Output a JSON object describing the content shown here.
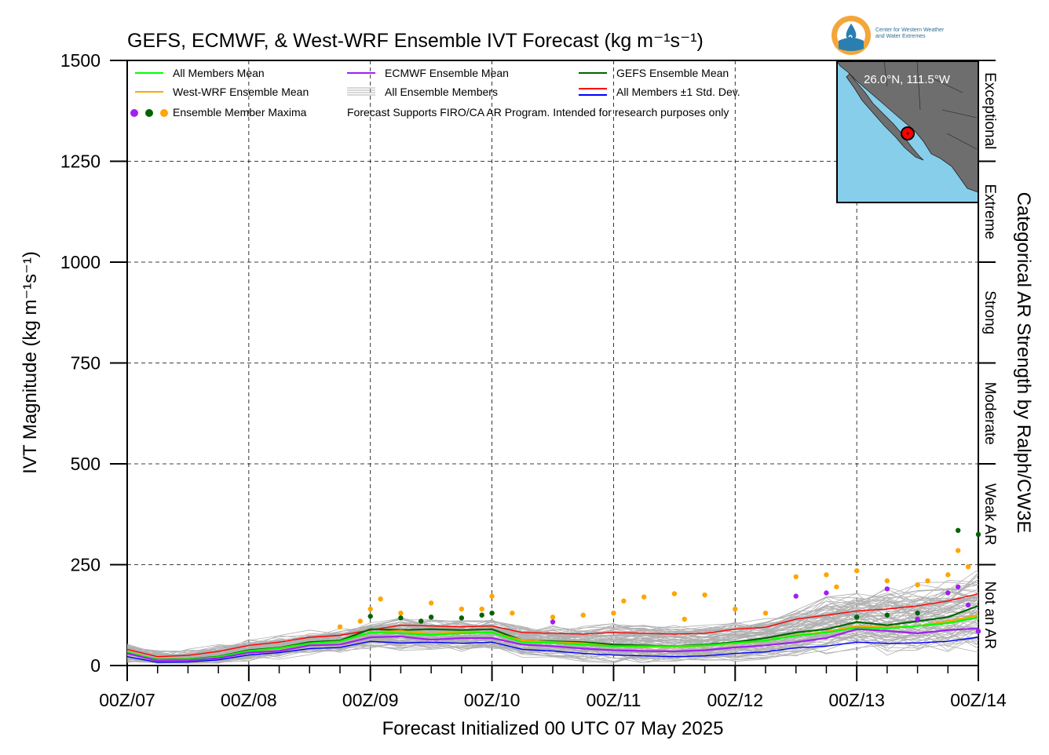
{
  "title": "GEFS, ECMWF, & West-WRF Ensemble IVT Forecast (kg m⁻¹s⁻¹)",
  "chart_data": {
    "type": "line",
    "title": "GEFS, ECMWF, & West-WRF Ensemble IVT Forecast (kg m⁻¹s⁻¹)",
    "xlabel": "Forecast Initialized 00 UTC 07 May 2025",
    "ylabel": "IVT Magnitude (kg m⁻¹s⁻¹)",
    "right_label": "Categorical AR Strength by Ralph/CW3E",
    "xlim": [
      0,
      168
    ],
    "ylim": [
      0,
      1500
    ],
    "x_ticks": [
      0,
      24,
      48,
      72,
      96,
      120,
      144,
      168
    ],
    "x_tick_labels": [
      "00Z/07",
      "00Z/08",
      "00Z/09",
      "00Z/10",
      "00Z/11",
      "00Z/12",
      "00Z/13",
      "00Z/14"
    ],
    "y_ticks": [
      0,
      250,
      500,
      750,
      1000,
      1250,
      1500
    ],
    "y_tick_labels": [
      "0",
      "250",
      "500",
      "750",
      "1000",
      "1250",
      "1500"
    ],
    "grid": true,
    "categories_right": [
      {
        "label": "Not an AR",
        "from": 0,
        "to": 250
      },
      {
        "label": "Weak AR",
        "from": 250,
        "to": 500
      },
      {
        "label": "Moderate",
        "from": 500,
        "to": 750
      },
      {
        "label": "Strong",
        "from": 750,
        "to": 1000
      },
      {
        "label": "Extreme",
        "from": 1000,
        "to": 1250
      },
      {
        "label": "Exceptional",
        "from": 1250,
        "to": 1500
      }
    ],
    "legend": {
      "placement": "top-left",
      "items": [
        {
          "label": "All Members Mean",
          "color": "#00ff00",
          "kind": "line"
        },
        {
          "label": "ECMWF Ensemble Mean",
          "color": "#a020f0",
          "kind": "line"
        },
        {
          "label": "GEFS Ensemble Mean",
          "color": "#006400",
          "kind": "line"
        },
        {
          "label": "West-WRF Ensemble Mean",
          "color": "#ffa500",
          "kind": "line"
        },
        {
          "label": "All Ensemble Members",
          "color": "#b0b0b0",
          "kind": "multiline"
        },
        {
          "label": "All Members ±1 Std. Dev.",
          "color": "#ff0000",
          "color2": "#0000ff",
          "kind": "pair"
        },
        {
          "label": "Ensemble Member Maxima",
          "color": "#a020f0",
          "kind": "dots"
        }
      ],
      "note": "Forecast Supports FIRO/CA AR Program. Intended for research purposes only"
    },
    "x": [
      0,
      6,
      12,
      18,
      24,
      30,
      36,
      42,
      48,
      54,
      60,
      66,
      72,
      78,
      84,
      90,
      96,
      102,
      108,
      114,
      120,
      126,
      132,
      138,
      144,
      150,
      156,
      162,
      168
    ],
    "series": [
      {
        "name": "All Members ±1 Std. Dev.",
        "color": "#ff0000",
        "width": 1.4,
        "values": [
          40,
          22,
          25,
          35,
          50,
          58,
          70,
          75,
          88,
          100,
          98,
          96,
          98,
          82,
          80,
          78,
          82,
          80,
          78,
          80,
          90,
          95,
          115,
          125,
          135,
          140,
          148,
          160,
          178
        ]
      },
      {
        "name": "GEFS Ensemble Mean",
        "color": "#006400",
        "width": 2.2,
        "values": [
          32,
          15,
          16,
          22,
          38,
          44,
          58,
          62,
          90,
          88,
          90,
          88,
          90,
          62,
          60,
          58,
          52,
          50,
          48,
          52,
          58,
          68,
          82,
          90,
          108,
          100,
          110,
          120,
          148
        ]
      },
      {
        "name": "West-WRF Ensemble Mean",
        "color": "#ffa500",
        "width": 2.2,
        "values": [
          34,
          14,
          15,
          20,
          36,
          42,
          55,
          60,
          82,
          86,
          78,
          84,
          82,
          62,
          58,
          55,
          48,
          46,
          46,
          50,
          55,
          62,
          75,
          84,
          98,
          94,
          98,
          110,
          125
        ]
      },
      {
        "name": "All Members Mean",
        "color": "#00ff00",
        "width": 2.2,
        "values": [
          33,
          14,
          15,
          21,
          36,
          43,
          55,
          60,
          82,
          80,
          76,
          80,
          82,
          58,
          56,
          52,
          48,
          48,
          48,
          50,
          56,
          62,
          74,
          82,
          94,
          92,
          98,
          105,
          120
        ]
      },
      {
        "name": "ECMWF Ensemble Mean",
        "color": "#a020f0",
        "width": 2.2,
        "values": [
          30,
          12,
          13,
          18,
          32,
          36,
          50,
          52,
          70,
          72,
          64,
          68,
          68,
          52,
          48,
          42,
          38,
          36,
          35,
          38,
          45,
          50,
          58,
          68,
          90,
          86,
          80,
          88,
          92
        ]
      },
      {
        "name": "All Members -1 Std. Dev.",
        "color": "#0000ff",
        "width": 1.4,
        "values": [
          22,
          8,
          9,
          14,
          26,
          32,
          42,
          45,
          60,
          56,
          58,
          55,
          58,
          40,
          36,
          30,
          26,
          24,
          22,
          24,
          30,
          34,
          44,
          48,
          58,
          55,
          56,
          60,
          70
        ]
      }
    ],
    "maxima": {
      "ecmwf": {
        "color": "#a020f0",
        "x": [
          84,
          132,
          138,
          150,
          156,
          162,
          164,
          166,
          168
        ],
        "y": [
          108,
          172,
          180,
          190,
          115,
          180,
          195,
          150,
          85
        ]
      },
      "gefs": {
        "color": "#006400",
        "x": [
          48,
          54,
          58,
          60,
          66,
          70,
          72,
          144,
          150,
          156,
          164,
          168
        ],
        "y": [
          122,
          118,
          110,
          120,
          118,
          125,
          130,
          120,
          125,
          130,
          335,
          325
        ]
      },
      "wrf": {
        "color": "#ffa500",
        "x": [
          42,
          46,
          48,
          50,
          54,
          60,
          66,
          70,
          72,
          76,
          84,
          90,
          96,
          98,
          102,
          108,
          110,
          114,
          120,
          126,
          132,
          138,
          140,
          144,
          150,
          156,
          158,
          162,
          164,
          166
        ],
        "y": [
          96,
          110,
          140,
          165,
          130,
          155,
          140,
          140,
          172,
          130,
          120,
          125,
          130,
          160,
          170,
          178,
          115,
          175,
          140,
          130,
          220,
          225,
          195,
          235,
          210,
          200,
          210,
          225,
          285,
          245
        ]
      }
    },
    "inset_map": {
      "label": "26.0°N, 111.5°W"
    }
  },
  "logo": {
    "line1": "Center for Western Weather",
    "line2": "and Water Extremes"
  },
  "colors": {
    "grid": "#000000",
    "ensemble": "#b0b0b0",
    "map_ocean": "#87ceeb",
    "map_land": "#6e6e6e"
  }
}
